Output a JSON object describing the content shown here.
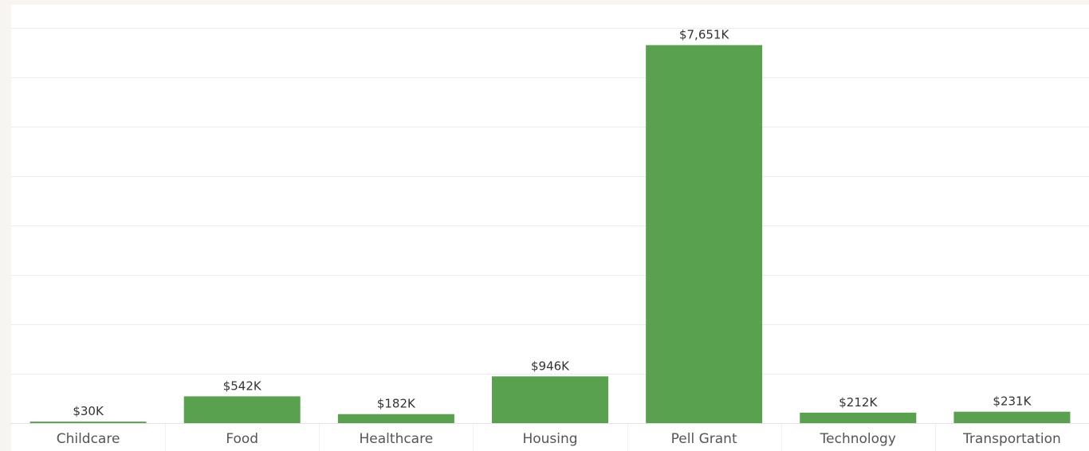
{
  "chart_data": {
    "type": "bar",
    "title": "",
    "xlabel": "",
    "ylabel": "",
    "categories": [
      "Childcare",
      "Food",
      "Healthcare",
      "Housing",
      "Pell Grant",
      "Technology",
      "Transportation"
    ],
    "values": [
      30,
      542,
      182,
      946,
      7651,
      212,
      231
    ],
    "value_labels": [
      "$30K",
      "$542K",
      "$182K",
      "$946K",
      "$7,651K",
      "$212K",
      "$231K"
    ],
    "units": "thousands USD",
    "ylim": [
      0,
      8000
    ],
    "grid": true,
    "legend": "none",
    "colors": {
      "bar": "#59a14f",
      "grid": "#ececec",
      "label_text": "#333333",
      "axis_text": "#555555",
      "background": "#f8f5f1"
    }
  }
}
